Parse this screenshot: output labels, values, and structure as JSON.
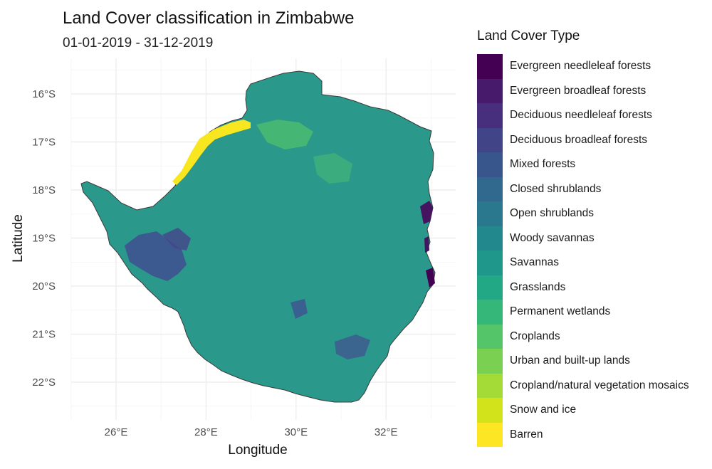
{
  "title": "Land Cover classification in Zimbabwe",
  "subtitle": "01-01-2019 - 31-12-2019",
  "x_axis": {
    "title": "Longitude",
    "ticks": [
      "26°E",
      "28°E",
      "30°E",
      "32°E"
    ],
    "values": [
      26,
      28,
      30,
      32
    ],
    "range": [
      24.9,
      33.4
    ]
  },
  "y_axis": {
    "title": "Latitude",
    "ticks": [
      "16°S",
      "17°S",
      "18°S",
      "19°S",
      "20°S",
      "21°S",
      "22°S"
    ],
    "values": [
      -16,
      -17,
      -18,
      -19,
      -20,
      -21,
      -22
    ],
    "range": [
      -22.8,
      -15.0
    ]
  },
  "legend": {
    "title": "Land Cover Type",
    "items": [
      {
        "label": "Evergreen needleleaf forests",
        "color": "#440154"
      },
      {
        "label": "Evergreen broadleaf forests",
        "color": "#481a6c"
      },
      {
        "label": "Deciduous needleleaf forests",
        "color": "#472f7d"
      },
      {
        "label": "Deciduous broadleaf forests",
        "color": "#414487"
      },
      {
        "label": "Mixed forests",
        "color": "#39568c"
      },
      {
        "label": "Closed shrublands",
        "color": "#31688e"
      },
      {
        "label": "Open shrublands",
        "color": "#2a788e"
      },
      {
        "label": "Woody savannas",
        "color": "#23888e"
      },
      {
        "label": "Savannas",
        "color": "#1f988b"
      },
      {
        "label": "Grasslands",
        "color": "#22a884"
      },
      {
        "label": "Permanent wetlands",
        "color": "#35b779"
      },
      {
        "label": "Croplands",
        "color": "#54c568"
      },
      {
        "label": "Urban and built-up lands",
        "color": "#7ad151"
      },
      {
        "label": "Cropland/natural vegetation mosaics",
        "color": "#a5db36"
      },
      {
        "label": "Snow and ice",
        "color": "#d2e21b"
      },
      {
        "label": "Barren",
        "color": "#fde725"
      }
    ]
  },
  "colors": {
    "dominant_class": "#2a988a",
    "grid": "#ebebeb"
  }
}
